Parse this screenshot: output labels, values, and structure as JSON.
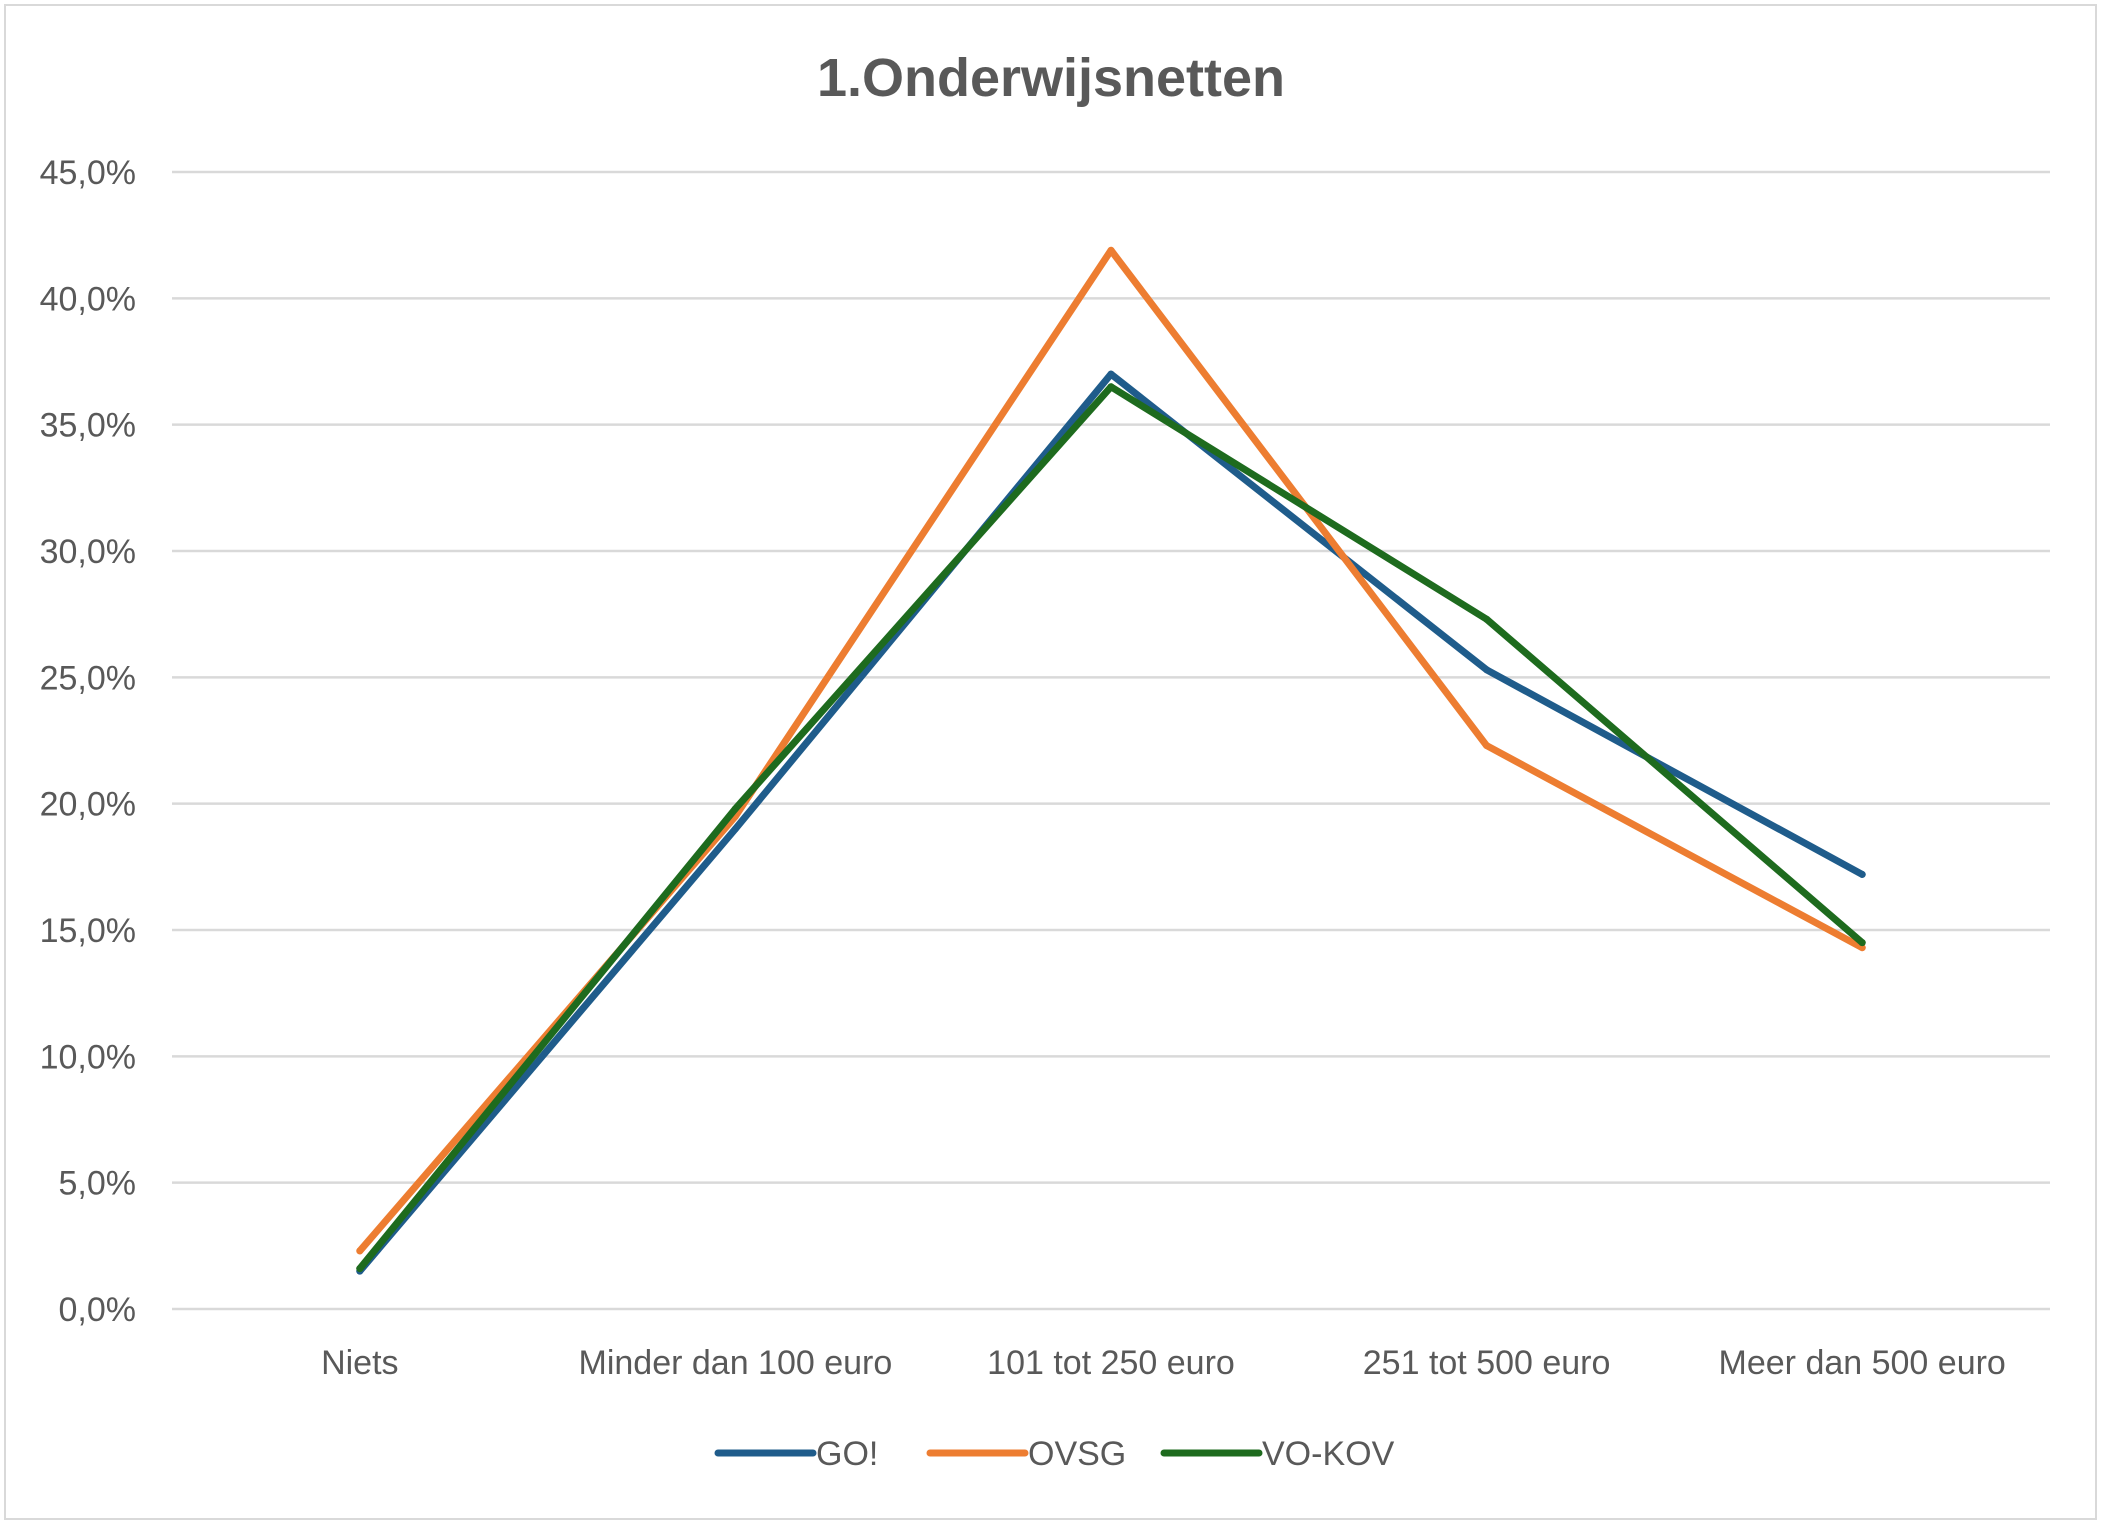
{
  "chart_data": {
    "type": "line",
    "title": "1.Onderwijsnetten",
    "categories": [
      "Niets",
      "Minder dan 100 euro",
      "101 tot 250 euro",
      "251 tot 500 euro",
      "Meer dan 500 euro"
    ],
    "series": [
      {
        "name": "GO!",
        "color": "#1f5c8b",
        "values": [
          1.5,
          19.0,
          37.0,
          25.3,
          17.2
        ]
      },
      {
        "name": "OVSG",
        "color": "#ed7d31",
        "values": [
          2.3,
          19.5,
          41.9,
          22.3,
          14.3
        ]
      },
      {
        "name": "VO-KOV",
        "color": "#1e6b1e",
        "values": [
          1.6,
          19.8,
          36.5,
          27.3,
          14.5
        ]
      }
    ],
    "y_ticks": [
      "0,0%",
      "5,0%",
      "10,0%",
      "15,0%",
      "20,0%",
      "25,0%",
      "30,0%",
      "35,0%",
      "40,0%",
      "45,0%"
    ],
    "ylim": [
      0,
      45
    ],
    "y_unit": "%",
    "grid": true,
    "legend_position": "bottom",
    "xlabel": "",
    "ylabel": ""
  }
}
